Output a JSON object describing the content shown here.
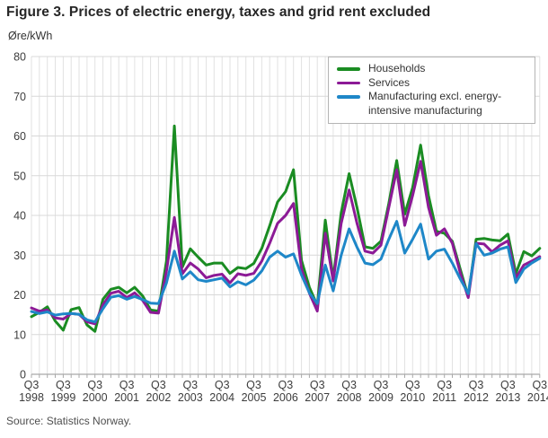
{
  "title": "Figure 3. Prices of electric energy, taxes and grid rent excluded",
  "source": "Source: Statistics Norway.",
  "chart_data": {
    "type": "line",
    "title": "Figure 3. Prices of electric energy, taxes and grid rent excluded",
    "ylabel": "Øre/kWh",
    "ylim": [
      0,
      80
    ],
    "ytick_step": 10,
    "grid": true,
    "legend_position": "top-right",
    "x_note": "Quarterly values from Q3 1998 to Q3 2014, 65 points per series; x tick labels mark Q3 of each year",
    "x_ticks": [
      "Q3 1998",
      "Q3 1999",
      "Q3 2000",
      "Q3 2001",
      "Q3 2002",
      "Q3 2003",
      "Q3 2004",
      "Q3 2005",
      "Q3 2006",
      "Q3 2007",
      "Q3 2008",
      "Q3 2009",
      "Q3 2010",
      "Q3 2011",
      "Q3 2012",
      "Q3 2013",
      "Q3 2014"
    ],
    "x_tick_every": 4,
    "series": [
      {
        "id": "households",
        "name": "Households",
        "color": "#1a8c22",
        "values": [
          14.5,
          15.6,
          17.0,
          13.4,
          11.1,
          16.3,
          16.8,
          12.4,
          10.8,
          18.9,
          21.4,
          21.9,
          20.5,
          21.9,
          19.7,
          16.2,
          15.9,
          28.5,
          62.5,
          27.0,
          31.6,
          29.5,
          27.5,
          28.0,
          28.0,
          25.4,
          26.9,
          26.6,
          27.9,
          31.7,
          37.4,
          43.4,
          46.0,
          51.5,
          28.7,
          21.9,
          17.3,
          38.8,
          24.0,
          40.7,
          50.5,
          42.0,
          32.1,
          31.7,
          33.5,
          43.0,
          53.8,
          40.3,
          47.0,
          57.7,
          45.0,
          36.0,
          35.5,
          33.5,
          26.4,
          19.6,
          34.0,
          34.2,
          33.8,
          33.6,
          35.3,
          25.3,
          30.9,
          29.8,
          31.7
        ]
      },
      {
        "id": "services",
        "name": "Services",
        "color": "#8c1a96",
        "values": [
          16.7,
          15.9,
          16.2,
          14.2,
          13.9,
          15.3,
          15.1,
          13.2,
          12.7,
          17.5,
          20.4,
          20.9,
          19.3,
          20.5,
          18.6,
          15.6,
          15.4,
          26.0,
          39.5,
          25.3,
          28.0,
          26.5,
          24.3,
          24.9,
          25.2,
          23.0,
          25.3,
          24.9,
          25.4,
          28.5,
          33.0,
          38.0,
          40.0,
          43.0,
          26.5,
          20.4,
          15.9,
          35.5,
          23.5,
          38.0,
          46.4,
          38.0,
          31.0,
          30.5,
          32.5,
          42.0,
          51.5,
          37.5,
          45.0,
          53.6,
          42.0,
          35.0,
          36.6,
          33.0,
          25.5,
          19.3,
          33.0,
          32.8,
          30.8,
          32.5,
          33.6,
          24.2,
          27.5,
          28.5,
          29.6
        ]
      },
      {
        "id": "manufacturing",
        "name": "Manufacturing excl. energy-intensive manufacturing",
        "color": "#1e87c8",
        "values": [
          15.8,
          15.3,
          15.7,
          14.9,
          15.2,
          15.3,
          15.1,
          13.7,
          13.2,
          16.5,
          19.4,
          19.8,
          18.9,
          19.6,
          18.8,
          17.9,
          17.8,
          23.0,
          31.0,
          24.0,
          25.8,
          23.8,
          23.4,
          23.8,
          24.2,
          22.0,
          23.3,
          22.5,
          23.7,
          26.0,
          29.5,
          31.0,
          29.5,
          30.3,
          25.0,
          20.5,
          17.8,
          27.5,
          21.0,
          30.0,
          36.6,
          32.0,
          28.0,
          27.6,
          29.0,
          34.0,
          38.5,
          30.5,
          34.0,
          37.8,
          29.0,
          31.0,
          31.5,
          28.0,
          24.0,
          20.3,
          32.9,
          30.0,
          30.5,
          31.5,
          32.1,
          23.1,
          26.5,
          28.0,
          29.2
        ]
      }
    ]
  }
}
